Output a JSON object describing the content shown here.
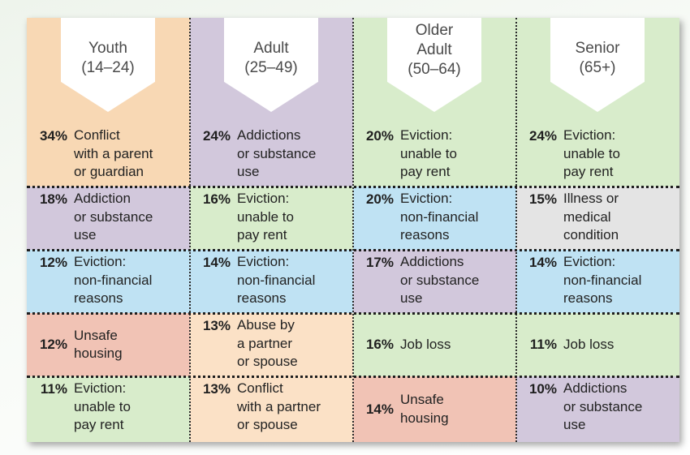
{
  "chart_data": {
    "type": "table",
    "columns": [
      {
        "label": "Youth\n(14–24)",
        "header_bg": "#f8d8b4",
        "rows": [
          {
            "pct": "34%",
            "text": "Conflict\nwith a parent\nor guardian",
            "bg": "#f8d8b4"
          },
          {
            "pct": "18%",
            "text": "Addiction\nor substance\nuse",
            "bg": "#d2c8dc"
          },
          {
            "pct": "12%",
            "text": "Eviction:\nnon-financial\nreasons",
            "bg": "#bfe2f3"
          },
          {
            "pct": "12%",
            "text": "Unsafe\nhousing",
            "bg": "#f1c3b5"
          },
          {
            "pct": "11%",
            "text": "Eviction:\nunable to\npay rent",
            "bg": "#d8eccb"
          }
        ]
      },
      {
        "label": "Adult\n(25–49)",
        "header_bg": "#d2c8dc",
        "rows": [
          {
            "pct": "24%",
            "text": "Addictions\nor substance\nuse",
            "bg": "#d2c8dc"
          },
          {
            "pct": "16%",
            "text": "Eviction:\nunable to\npay rent",
            "bg": "#d8eccb"
          },
          {
            "pct": "14%",
            "text": "Eviction:\nnon-financial\nreasons",
            "bg": "#bfe2f3"
          },
          {
            "pct": "13%",
            "text": "Abuse by\na partner\nor spouse",
            "bg": "#fbe1c6"
          },
          {
            "pct": "13%",
            "text": "Conflict\nwith a partner\nor spouse",
            "bg": "#fbe1c6"
          }
        ]
      },
      {
        "label": "Older\nAdult\n(50–64)",
        "header_bg": "#d8eccb",
        "rows": [
          {
            "pct": "20%",
            "text": "Eviction:\nunable to\npay rent",
            "bg": "#d8eccb"
          },
          {
            "pct": "20%",
            "text": "Eviction:\nnon-financial\nreasons",
            "bg": "#bfe2f3"
          },
          {
            "pct": "17%",
            "text": "Addictions\nor substance\nuse",
            "bg": "#d2c8dc"
          },
          {
            "pct": "16%",
            "text": "Job loss",
            "bg": "#d8eccb"
          },
          {
            "pct": "14%",
            "text": "Unsafe\nhousing",
            "bg": "#f1c3b5"
          }
        ]
      },
      {
        "label": "Senior\n(65+)",
        "header_bg": "#d8eccb",
        "rows": [
          {
            "pct": "24%",
            "text": "Eviction:\nunable to\npay rent",
            "bg": "#d8eccb"
          },
          {
            "pct": "15%",
            "text": "Illness or\nmedical\ncondition",
            "bg": "#e4e4e4"
          },
          {
            "pct": "14%",
            "text": "Eviction:\nnon-financial\nreasons",
            "bg": "#bfe2f3"
          },
          {
            "pct": "11%",
            "text": "Job loss",
            "bg": "#d8eccb"
          },
          {
            "pct": "10%",
            "text": "Addictions\nor substance\nuse",
            "bg": "#d2c8dc"
          }
        ]
      }
    ]
  }
}
